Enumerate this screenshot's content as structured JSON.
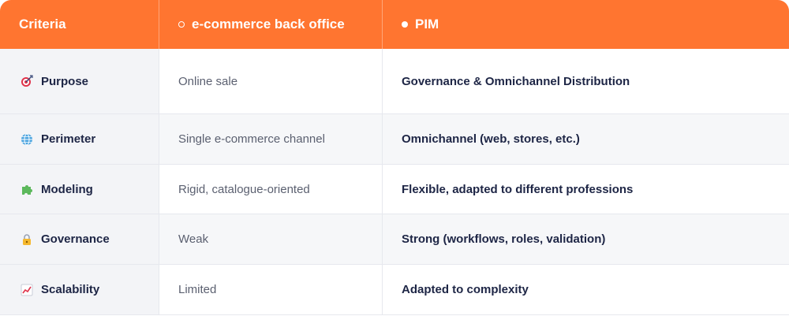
{
  "header": {
    "criteria": "Criteria",
    "ecommerce": "e-commerce back office",
    "pim": "PIM"
  },
  "rows": [
    {
      "icon": "target-icon",
      "criteria": "Purpose",
      "ecommerce": "Online sale",
      "pim": "Governance & Omnichannel Distribution"
    },
    {
      "icon": "globe-icon",
      "criteria": "Perimeter",
      "ecommerce": "Single e-commerce channel",
      "pim": "Omnichannel (web, stores, etc.)"
    },
    {
      "icon": "puzzle-icon",
      "criteria": "Modeling",
      "ecommerce": "Rigid, catalogue-oriented",
      "pim": "Flexible, adapted to different professions"
    },
    {
      "icon": "lock-icon",
      "criteria": "Governance",
      "ecommerce": "Weak",
      "pim": "Strong (workflows, roles, validation)"
    },
    {
      "icon": "chart-increasing-icon",
      "criteria": "Scalability",
      "ecommerce": "Limited",
      "pim": "Adapted to complexity"
    }
  ],
  "colors": {
    "header_bg": "#ff7530",
    "criteria_bg": "#f3f4f7",
    "text_dark": "#1d2545",
    "text_muted": "#5b6070"
  }
}
